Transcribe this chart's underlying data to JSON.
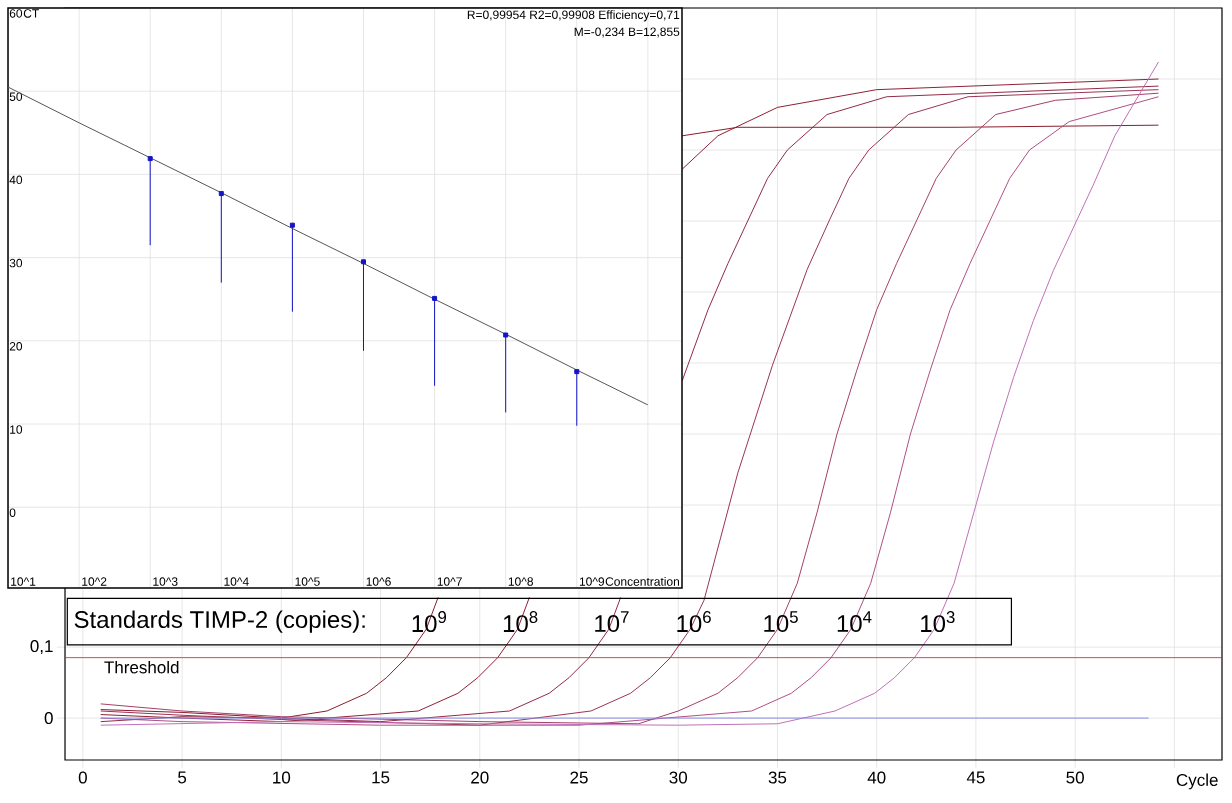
{
  "chart_data": [
    {
      "type": "line",
      "xlabel": "Cycle",
      "annotations": [
        "Standards TIMP-2 (copies):"
      ],
      "xlim": [
        -0.9,
        57.4
      ],
      "ylim": [
        -0.059,
        1.0
      ],
      "xticks": [
        0,
        5,
        10,
        15,
        20,
        25,
        30,
        35,
        40,
        45,
        50,
        {
          "value": 55,
          "label": null
        }
      ],
      "yticks": [
        0,
        {
          "value": 0.1,
          "label": "0,1"
        },
        {
          "value": 0.2,
          "label": null
        },
        {
          "value": 0.3,
          "label": null
        },
        {
          "value": 0.4,
          "label": null
        },
        {
          "value": 0.5,
          "label": null
        },
        {
          "value": 0.6,
          "label": null
        },
        {
          "value": 0.7,
          "label": null
        },
        {
          "value": 0.8,
          "label": null
        },
        {
          "value": 0.9,
          "label": null
        },
        {
          "value": 1.0,
          "label": null
        }
      ],
      "grid": true,
      "ref_lines": [
        {
          "axis": "y",
          "value": 0.085,
          "label": "Threshold",
          "color": "#c8323c"
        }
      ],
      "series": [
        {
          "name": "10$^{9}$",
          "color": "#8b1c2b",
          "x": [
            0.9,
            5,
            10,
            12.3,
            14.3,
            15.3,
            16.3,
            17.3,
            17.9,
            18.3,
            30.2,
            33,
            44,
            54.2
          ],
          "values": [
            0.012,
            0.008,
            0.0,
            0.01,
            0.035,
            0.057,
            0.085,
            0.125,
            0.17,
            null,
            0.82,
            0.832,
            0.832,
            0.835
          ]
        },
        {
          "name": "10$^{8}$",
          "color": "#8e2035",
          "x": [
            0.9,
            5,
            10,
            16.9,
            18.9,
            19.9,
            20.9,
            21.9,
            22.5,
            22.9,
            30.2,
            32,
            35,
            40,
            54.2
          ],
          "values": [
            0.005,
            0.0,
            -0.005,
            0.01,
            0.035,
            0.057,
            0.085,
            0.125,
            0.17,
            null,
            0.773,
            0.82,
            0.86,
            0.885,
            0.9
          ]
        },
        {
          "name": "10$^{7}$",
          "color": "#922a45",
          "x": [
            0.9,
            5,
            10,
            15,
            21.5,
            23.5,
            24.5,
            25.5,
            26.5,
            27.1,
            27.5,
            30.2,
            31.5,
            32.5,
            33.5,
            34.5,
            35.5,
            37.5,
            40.5,
            54.2
          ],
          "values": [
            -0.005,
            0.002,
            0.0,
            -0.005,
            0.01,
            0.035,
            0.057,
            0.085,
            0.125,
            0.17,
            null,
            0.475,
            0.575,
            0.64,
            0.7,
            0.76,
            0.8,
            0.85,
            0.875,
            0.89
          ]
        },
        {
          "name": "10$^{6}$",
          "color": "#9a3355",
          "x": [
            0.9,
            5,
            10,
            20,
            25.6,
            27.6,
            28.6,
            29.6,
            30.6,
            31.3,
            33,
            34.75,
            36.5,
            37.6,
            38.6,
            39.6,
            41.6,
            44.6,
            54.2
          ],
          "values": [
            0.01,
            0.004,
            -0.002,
            -0.01,
            0.01,
            0.035,
            0.057,
            0.085,
            0.125,
            0.166,
            0.345,
            0.497,
            0.632,
            0.7,
            0.76,
            0.8,
            0.85,
            0.875,
            0.885
          ]
        },
        {
          "name": "10$^{5}$",
          "color": "#a43f6a",
          "x": [
            0.9,
            5,
            10,
            20,
            28,
            30,
            32,
            33,
            34,
            35,
            36,
            37,
            38,
            39,
            40,
            41,
            42,
            43,
            44,
            46,
            49,
            54.2
          ],
          "values": [
            0.02,
            0.01,
            0.002,
            -0.005,
            -0.008,
            0.01,
            0.035,
            0.057,
            0.085,
            0.125,
            0.19,
            0.29,
            0.4,
            0.49,
            0.575,
            0.64,
            0.7,
            0.76,
            0.8,
            0.85,
            0.87,
            0.88
          ]
        },
        {
          "name": "10$^{4}$",
          "color": "#b04f85",
          "x": [
            0.9,
            5,
            15,
            25,
            33.7,
            35.7,
            36.7,
            37.7,
            38.7,
            39.7,
            40.7,
            41.7,
            42.7,
            43.7,
            44.7,
            45.7,
            46.7,
            47.7,
            49.7,
            54.2
          ],
          "values": [
            0.0,
            -0.005,
            -0.01,
            -0.01,
            0.01,
            0.035,
            0.057,
            0.085,
            0.125,
            0.19,
            0.29,
            0.4,
            0.49,
            0.575,
            0.64,
            0.7,
            0.76,
            0.8,
            0.84,
            0.875
          ]
        },
        {
          "name": "10$^{3}$",
          "color": "#c070b8",
          "x": [
            0.9,
            10,
            20,
            30,
            35,
            37.9,
            39.9,
            40.9,
            41.9,
            42.9,
            43.9,
            44.9,
            45.9,
            46.9,
            47.9,
            48.9,
            49.9,
            50.9,
            52,
            54.2
          ],
          "values": [
            -0.01,
            -0.005,
            -0.008,
            -0.01,
            -0.008,
            0.01,
            0.035,
            0.057,
            0.085,
            0.125,
            0.19,
            0.29,
            0.39,
            0.48,
            0.56,
            0.63,
            0.69,
            0.75,
            0.82,
            0.924
          ]
        },
        {
          "color": "#8c8ce6",
          "x": [
            0.9,
            53.7
          ],
          "values": [
            0.0,
            0.0
          ]
        }
      ]
    },
    {
      "type": "scatter",
      "xlabel": "Concentration",
      "ylabel": "CT",
      "annotations": [
        "R=0,99954 R2=0,99908 Efficiency=0,71",
        "M=-0,234 B=12,855"
      ],
      "categories": [
        "10^1",
        "10^2",
        "10^3",
        "10^4",
        "10^5",
        "10^6",
        "10^7",
        "10^8",
        "10^9",
        null
      ],
      "ylim": [
        -9.7,
        60
      ],
      "yticks": [
        0,
        10,
        20,
        30,
        40,
        50,
        60
      ],
      "grid": true,
      "series": [
        {
          "color": "#1414c8",
          "marker": "square",
          "values": [
            null,
            null,
            41.9,
            37.7,
            33.9,
            29.5,
            25.1,
            20.7,
            16.3,
            null
          ],
          "errors": [
            null,
            null,
            [
              31.5,
              41.9
            ],
            [
              27.0,
              37.7
            ],
            [
              23.5,
              33.9
            ],
            [
              18.8,
              29.5
            ],
            [
              14.6,
              25.1
            ],
            [
              11.4,
              20.7
            ],
            [
              9.8,
              16.3
            ],
            null
          ]
        },
        {
          "type": "line",
          "color": "#555555",
          "values": [
            50.5,
            46.2,
            42.0,
            37.8,
            33.5,
            29.3,
            25.0,
            20.8,
            16.5,
            12.3
          ]
        }
      ]
    }
  ]
}
